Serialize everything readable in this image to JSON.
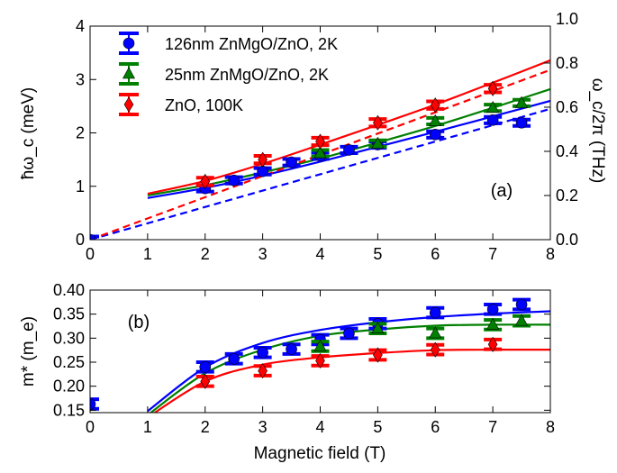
{
  "chart_data": [
    {
      "type": "scatter",
      "panel_label": "(a)",
      "ylabel": "ħω_c (meV)",
      "ylabel_right": "ω_c/2π (THz)",
      "xlim": [
        0,
        8
      ],
      "ylim": [
        0,
        4
      ],
      "xticks": [
        "0",
        "1",
        "2",
        "3",
        "4",
        "5",
        "6",
        "7",
        "8"
      ],
      "yticks": [
        "0",
        "1",
        "2",
        "3",
        "4"
      ],
      "yticks_right": [
        "0.0",
        "0.2",
        "0.4",
        "0.6",
        "0.8",
        "1.0"
      ],
      "right_axis_conversion_meV_per_THz": 4.136,
      "grid": false,
      "legend_position": "top-left",
      "series": [
        {
          "name": "126nm ZnMgO/ZnO, 2K",
          "color": "#0000ff",
          "marker": "circle",
          "x": [
            0,
            2,
            2.5,
            3,
            3.5,
            4,
            4.5,
            5,
            6,
            7,
            7.5
          ],
          "y": [
            0,
            0.96,
            1.11,
            1.28,
            1.45,
            1.57,
            1.68,
            1.78,
            1.97,
            2.24,
            2.19
          ],
          "yerr": 0.06,
          "fit_solid": {
            "x": [
              1,
              2,
              3,
              4,
              5,
              6,
              7,
              8
            ],
            "y": [
              0.78,
              0.97,
              1.2,
              1.46,
              1.74,
              2.02,
              2.31,
              2.6
            ]
          },
          "fit_dashed": {
            "x": [
              0,
              8
            ],
            "y": [
              0,
              2.45
            ]
          }
        },
        {
          "name": "25nm ZnMgO/ZnO, 2K",
          "color": "#008000",
          "marker": "triangle",
          "x": [
            4,
            5,
            6,
            7,
            7.5
          ],
          "y": [
            1.62,
            1.8,
            2.22,
            2.47,
            2.56
          ],
          "yerr": 0.06,
          "fit_solid": {
            "x": [
              1,
              2,
              3,
              4,
              5,
              6,
              7,
              8
            ],
            "y": [
              0.83,
              1.02,
              1.26,
              1.52,
              1.82,
              2.13,
              2.47,
              2.82
            ]
          }
        },
        {
          "name": "ZnO, 100K",
          "color": "#ff0000",
          "marker": "diamond",
          "x": [
            2,
            3,
            4,
            5,
            6,
            7
          ],
          "y": [
            1.09,
            1.5,
            1.84,
            2.19,
            2.52,
            2.83
          ],
          "yerr": 0.07,
          "fit_solid": {
            "x": [
              1,
              2,
              3,
              4,
              5,
              6,
              7,
              8
            ],
            "y": [
              0.86,
              1.1,
              1.42,
              1.78,
              2.15,
              2.53,
              2.94,
              3.36
            ]
          },
          "fit_dashed": {
            "x": [
              0,
              8
            ],
            "y": [
              0,
              3.18
            ]
          }
        }
      ]
    },
    {
      "type": "scatter",
      "panel_label": "(b)",
      "xlabel": "Magnetic field (T)",
      "ylabel": "m* (m_e)",
      "xlim": [
        0,
        8
      ],
      "ylim": [
        0.145,
        0.4
      ],
      "xticks": [
        "0",
        "1",
        "2",
        "3",
        "4",
        "5",
        "6",
        "7",
        "8"
      ],
      "yticks": [
        "0.15",
        "0.20",
        "0.25",
        "0.30",
        "0.35",
        "0.40"
      ],
      "grid": false,
      "series": [
        {
          "color": "#0000ff",
          "marker": "circle",
          "x": [
            0,
            2,
            2.5,
            3,
            3.5,
            4,
            4.5,
            5,
            6,
            7,
            7.5
          ],
          "y": [
            0.163,
            0.24,
            0.257,
            0.27,
            0.277,
            0.297,
            0.31,
            0.33,
            0.353,
            0.36,
            0.37
          ],
          "yerr": 0.01,
          "fit": {
            "x": [
              1,
              2,
              3,
              4,
              5,
              6,
              7,
              8
            ],
            "y": [
              0.148,
              0.239,
              0.29,
              0.317,
              0.333,
              0.344,
              0.351,
              0.356
            ]
          }
        },
        {
          "color": "#008000",
          "marker": "triangle",
          "x": [
            4,
            5,
            6,
            7,
            7.5
          ],
          "y": [
            0.283,
            0.32,
            0.31,
            0.328,
            0.336
          ],
          "yerr": 0.01,
          "fit": {
            "x": [
              1,
              2,
              3,
              4,
              5,
              6,
              7,
              8
            ],
            "y": [
              0.14,
              0.227,
              0.276,
              0.305,
              0.318,
              0.326,
              0.328,
              0.328
            ]
          }
        },
        {
          "color": "#ff0000",
          "marker": "diamond",
          "x": [
            2,
            3,
            4,
            5,
            6,
            7
          ],
          "y": [
            0.21,
            0.232,
            0.253,
            0.265,
            0.276,
            0.287
          ],
          "yerr": 0.01,
          "fit": {
            "x": [
              1,
              2,
              3,
              4,
              5,
              6,
              7,
              8
            ],
            "y": [
              0.135,
              0.21,
              0.245,
              0.26,
              0.269,
              0.275,
              0.276,
              0.276
            ]
          }
        }
      ]
    }
  ]
}
